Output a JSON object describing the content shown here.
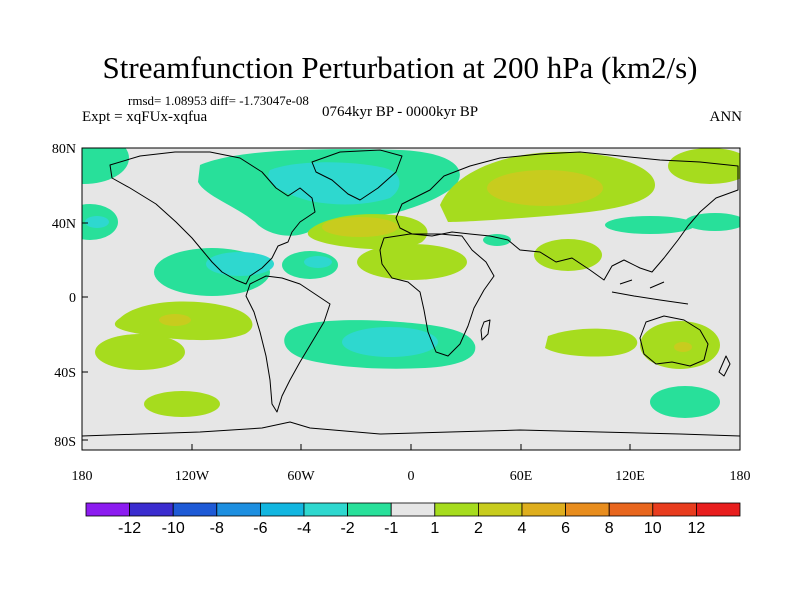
{
  "title": "Streamfunction Perturbation at 200 hPa (km2/s)",
  "stats": "rmsd= 1.08953 diff= -1.73047e-08",
  "experiment": "Expt = xqFUx-xqfua",
  "period": "0764kyr BP - 0000kyr BP",
  "season": "ANN",
  "map": {
    "lat_ticks": [
      "80N",
      "40N",
      "0",
      "40S",
      "80S"
    ],
    "lon_ticks": [
      "180",
      "120W",
      "60W",
      "0",
      "60E",
      "120E",
      "180"
    ]
  },
  "colorbar": {
    "labels": [
      "-12",
      "-10",
      "-8",
      "-6",
      "-4",
      "-2",
      "-1",
      "1",
      "2",
      "4",
      "6",
      "8",
      "10",
      "12"
    ],
    "colors": [
      "#8c1cf0",
      "#3b2ccf",
      "#1e5ad6",
      "#1d8fe0",
      "#12b6e0",
      "#2ed8cf",
      "#28e09a",
      "#e6e6e6",
      "#a6dc1e",
      "#c8cc1e",
      "#deae1e",
      "#e88d1e",
      "#e8661e",
      "#e83c1e",
      "#e81e1e"
    ]
  },
  "colors": {
    "background": "#e6e6e6",
    "coast": "#000000"
  }
}
